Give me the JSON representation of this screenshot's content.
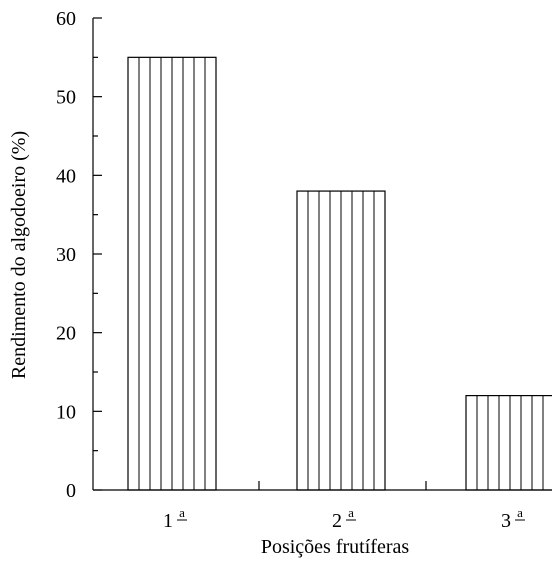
{
  "chart_data": {
    "type": "bar",
    "categories": [
      "1ª",
      "2ª",
      "3ª"
    ],
    "category_labels": [
      {
        "base": "1",
        "sup": "a"
      },
      {
        "base": "2",
        "sup": "a"
      },
      {
        "base": "3",
        "sup": "a"
      }
    ],
    "values": [
      55,
      38,
      12
    ],
    "xlabel": "Posições frutíferas",
    "ylabel": "Rendimento do algodoeiro (%)",
    "ylim": [
      0,
      60
    ],
    "yticks": [
      0,
      10,
      20,
      30,
      40,
      50,
      60
    ],
    "grid": false,
    "bar_fill": "vertical hatching",
    "colors": {
      "stroke": "#000000",
      "background": "#ffffff"
    }
  }
}
